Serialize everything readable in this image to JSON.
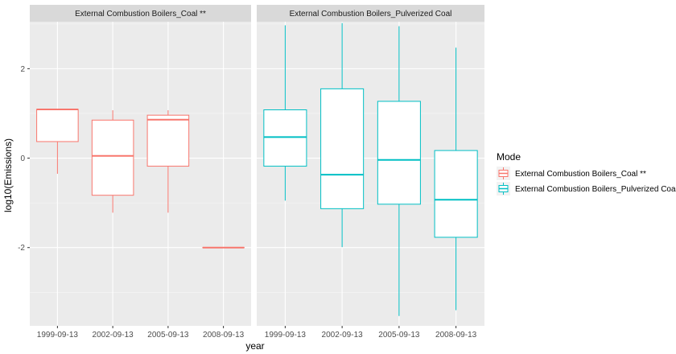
{
  "chart_data": {
    "type": "boxplot",
    "xlabel": "year",
    "ylabel": "log10(Emissions)",
    "ylim": [
      -3.75,
      3.05
    ],
    "yticks": [
      -2,
      0,
      2
    ],
    "categories": [
      "1999-09-13",
      "2002-09-13",
      "2005-09-13",
      "2008-09-13"
    ],
    "grid": true,
    "legend": {
      "title": "Mode",
      "placement": "right",
      "entries": [
        "External Combustion Boilers_Coal **",
        "External Combustion Boilers_Pulverized Coal"
      ]
    },
    "colors": {
      "External Combustion Boilers_Coal **": "#F8766D",
      "External Combustion Boilers_Pulverized Coal": "#00BFC4"
    },
    "panels": [
      {
        "strip": "External Combustion Boilers_Coal **",
        "series": "External Combustion Boilers_Coal **",
        "boxes": [
          {
            "x": "1999-09-13",
            "min": -0.35,
            "q1": 0.37,
            "median": 1.09,
            "q3": 1.09,
            "max": 1.09
          },
          {
            "x": "2002-09-13",
            "min": -1.22,
            "q1": -0.83,
            "median": 0.05,
            "q3": 0.85,
            "max": 1.07
          },
          {
            "x": "2005-09-13",
            "min": -1.22,
            "q1": -0.18,
            "median": 0.86,
            "q3": 0.96,
            "max": 1.07
          },
          {
            "x": "2008-09-13",
            "min": -2.0,
            "q1": -2.0,
            "median": -2.0,
            "q3": -2.0,
            "max": -2.0
          }
        ]
      },
      {
        "strip": "External Combustion Boilers_Pulverized Coal",
        "series": "External Combustion Boilers_Pulverized Coal",
        "boxes": [
          {
            "x": "1999-09-13",
            "min": -0.95,
            "q1": -0.18,
            "median": 0.47,
            "q3": 1.08,
            "max": 2.97
          },
          {
            "x": "2002-09-13",
            "min": -1.99,
            "q1": -1.13,
            "median": -0.37,
            "q3": 1.55,
            "max": 3.02
          },
          {
            "x": "2005-09-13",
            "min": -3.53,
            "q1": -1.03,
            "median": -0.04,
            "q3": 1.27,
            "max": 2.95
          },
          {
            "x": "2008-09-13",
            "min": -3.4,
            "q1": -1.77,
            "median": -0.93,
            "q3": 0.17,
            "max": 2.47
          }
        ]
      }
    ]
  }
}
